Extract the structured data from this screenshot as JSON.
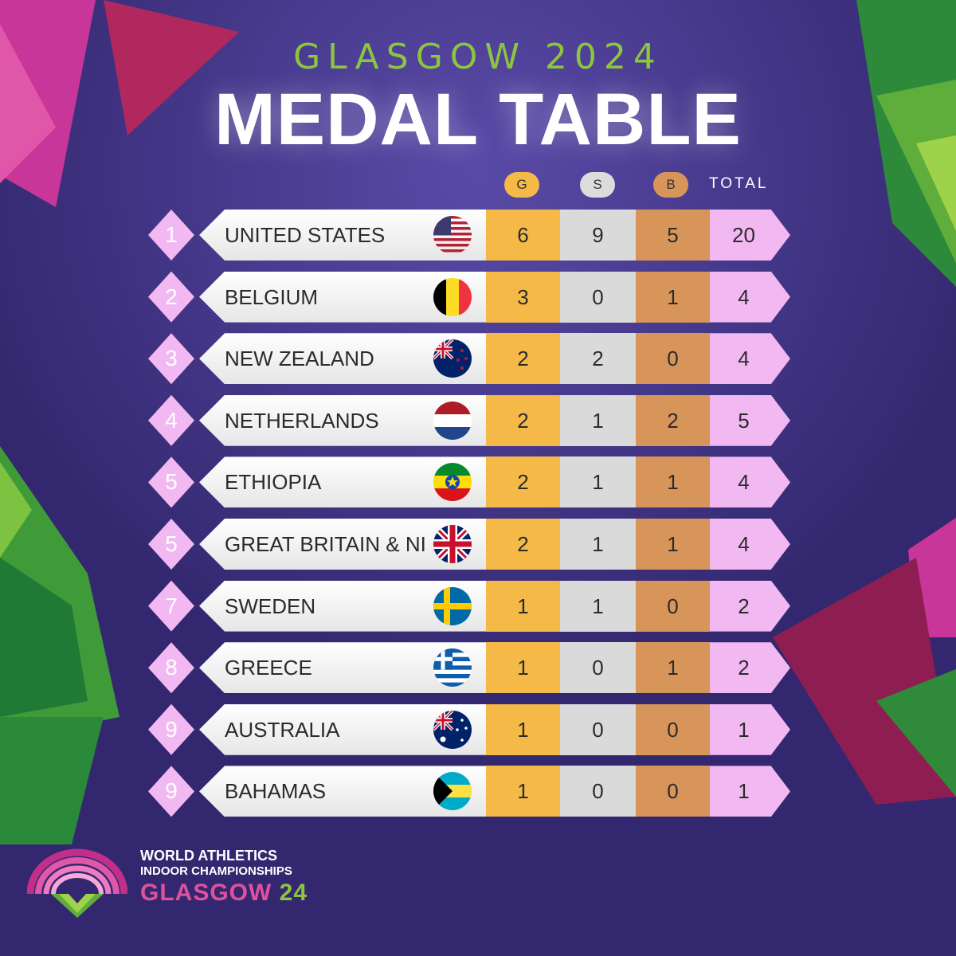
{
  "header": {
    "subtitle": "GLASGOW 2024",
    "title": "MEDAL TABLE"
  },
  "columns": {
    "gold": "G",
    "silver": "S",
    "bronze": "B",
    "total": "TOTAL"
  },
  "rows": [
    {
      "rank": "1",
      "country": "UNITED STATES",
      "flag": "us-flag-icon",
      "gold": "6",
      "silver": "9",
      "bronze": "5",
      "total": "20"
    },
    {
      "rank": "2",
      "country": "BELGIUM",
      "flag": "belgium-flag-icon",
      "gold": "3",
      "silver": "0",
      "bronze": "1",
      "total": "4"
    },
    {
      "rank": "3",
      "country": "NEW ZEALAND",
      "flag": "new-zealand-flag-icon",
      "gold": "2",
      "silver": "2",
      "bronze": "0",
      "total": "4"
    },
    {
      "rank": "4",
      "country": "NETHERLANDS",
      "flag": "netherlands-flag-icon",
      "gold": "2",
      "silver": "1",
      "bronze": "2",
      "total": "5"
    },
    {
      "rank": "5",
      "country": "ETHIOPIA",
      "flag": "ethiopia-flag-icon",
      "gold": "2",
      "silver": "1",
      "bronze": "1",
      "total": "4"
    },
    {
      "rank": "5",
      "country": "GREAT BRITAIN & NI",
      "flag": "uk-flag-icon",
      "gold": "2",
      "silver": "1",
      "bronze": "1",
      "total": "4"
    },
    {
      "rank": "7",
      "country": "SWEDEN",
      "flag": "sweden-flag-icon",
      "gold": "1",
      "silver": "1",
      "bronze": "0",
      "total": "2"
    },
    {
      "rank": "8",
      "country": "GREECE",
      "flag": "greece-flag-icon",
      "gold": "1",
      "silver": "0",
      "bronze": "1",
      "total": "2"
    },
    {
      "rank": "9",
      "country": "AUSTRALIA",
      "flag": "australia-flag-icon",
      "gold": "1",
      "silver": "0",
      "bronze": "0",
      "total": "1"
    },
    {
      "rank": "9",
      "country": "BAHAMAS",
      "flag": "bahamas-flag-icon",
      "gold": "1",
      "silver": "0",
      "bronze": "0",
      "total": "1"
    }
  ],
  "logo": {
    "line1": "WORLD ATHLETICS",
    "line2": "INDOOR CHAMPIONSHIPS",
    "line3a": "GLASGOW ",
    "line3b": "24"
  },
  "colors": {
    "background": "#3a2d7a",
    "gold": "#f5b947",
    "silver": "#dadada",
    "bronze": "#d8955a",
    "pink": "#f2b8f2",
    "green_accent": "#8cc63f",
    "magenta_accent": "#e0519b"
  }
}
